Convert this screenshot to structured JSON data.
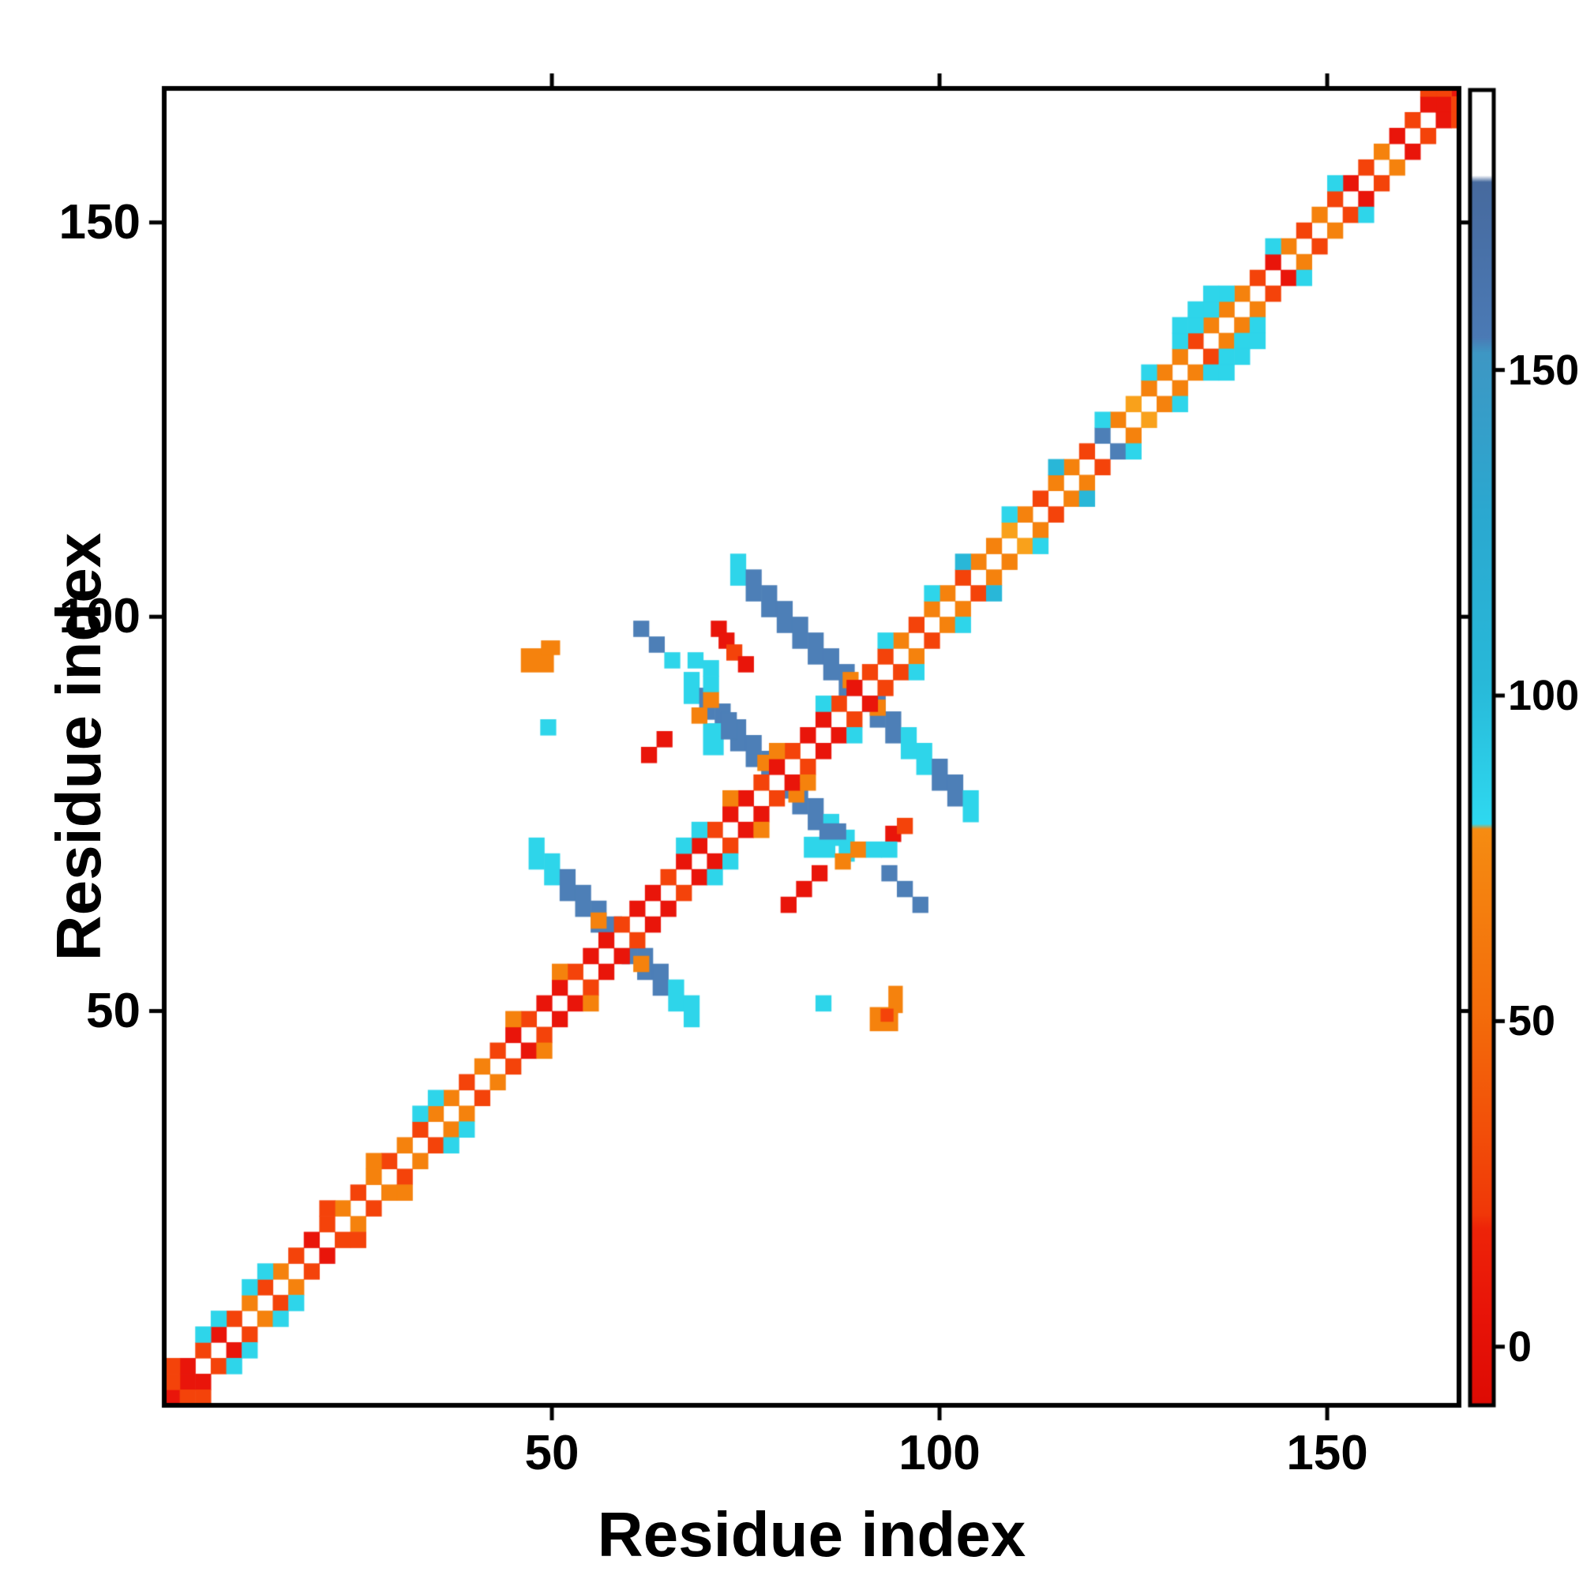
{
  "chart_data": {
    "type": "heatmap",
    "title": "",
    "xlabel": "Residue index",
    "ylabel": "Residue index",
    "axes": {
      "x_ticks": [
        50,
        100,
        150
      ],
      "y_ticks": [
        50,
        100,
        150
      ],
      "x_range": [
        0,
        167
      ],
      "y_range": [
        0,
        167
      ],
      "grid": "off"
    },
    "colorbar": {
      "ticks": [
        0,
        50,
        100,
        150
      ],
      "value_range": [
        -9,
        193
      ],
      "position": "right",
      "stops": [
        [
          0.0,
          "#de0b04"
        ],
        [
          0.07,
          "#e81408"
        ],
        [
          0.135,
          "#ee2408"
        ],
        [
          0.145,
          "#f03708"
        ],
        [
          0.2,
          "#f24c09"
        ],
        [
          0.3,
          "#f46d0b"
        ],
        [
          0.438,
          "#f68c12"
        ],
        [
          0.442,
          "#2fd9f0"
        ],
        [
          0.55,
          "#28b9d9"
        ],
        [
          0.68,
          "#2ba8d0"
        ],
        [
          0.8,
          "#3e97c4"
        ],
        [
          0.812,
          "#4b7ab5"
        ],
        [
          0.93,
          "#476a9e"
        ],
        [
          0.935,
          "#ffffff"
        ],
        [
          1.0,
          "#ffffff"
        ]
      ]
    },
    "palette": {
      "r": "#e9150a",
      "s": "#f4430a",
      "o": "#f5820d",
      "a": "#f9a11b",
      "c": "#2ed5ea",
      "t": "#29b7d8",
      "b": "#4d7fb7",
      "w": "#ffffff"
    },
    "cell_size_residues": 2,
    "diag_seq0": "rr................................................................................rr",
    "diag_seq1": "srsrsososrsosososoososrsrrsrrsrrsrrsrrsrsrrsrssosoosooaosoosboaooosooosrososrsorsrsr",
    "diag_seq2": "s.cc.cc...s..o..cc....o..o.......cc.o..o..c...c..c.t..c..t..c..c.cccc..c...c.....s.s",
    "diag_seq3": ".................................................................ccc................",
    "streaks": [
      {
        "sum": 117,
        "x0": 47,
        "x1": 67,
        "color": "b",
        "cyan": [
          47,
          49,
          65,
          67
        ]
      },
      {
        "sum": 158,
        "x0": 67,
        "x1": 87,
        "color": "b",
        "cyan": [
          67,
          85,
          87
        ]
      },
      {
        "sum": 179,
        "x0": 73,
        "x1": 103,
        "color": "b",
        "cyan": [
          73,
          89,
          95,
          97,
          103
        ]
      }
    ],
    "rects": [
      [
        46.0,
        93.0,
        4.2,
        3.0,
        "o"
      ],
      [
        48.6,
        95.2,
        2.4,
        1.8,
        "o"
      ],
      [
        91.0,
        47.5,
        3.6,
        3.0,
        "o"
      ],
      [
        93.4,
        49.8,
        1.8,
        3.4,
        "o"
      ],
      [
        92.4,
        48.7,
        1.6,
        1.6,
        "s"
      ],
      [
        82.5,
        69.5,
        4.0,
        2.6,
        "c"
      ],
      [
        84.5,
        71.8,
        3.4,
        2.0,
        "b"
      ],
      [
        69.5,
        82.5,
        2.6,
        4.0,
        "c"
      ],
      [
        71.8,
        84.5,
        2.0,
        3.4,
        "b"
      ]
    ],
    "scatter_cells": [
      [
        60.5,
        97.5,
        "b"
      ],
      [
        62.5,
        95.5,
        "b"
      ],
      [
        92.5,
        66.5,
        "b"
      ],
      [
        94.5,
        64.5,
        "b"
      ],
      [
        96.5,
        62.5,
        "b"
      ],
      [
        64.5,
        93.5,
        "c"
      ],
      [
        67.5,
        93.5,
        "c"
      ],
      [
        48.5,
        85.0,
        "c"
      ],
      [
        84.0,
        50.0,
        "c"
      ],
      [
        61.5,
        81.5,
        "r"
      ],
      [
        63.5,
        83.5,
        "r"
      ],
      [
        79.5,
        62.5,
        "r"
      ],
      [
        81.5,
        64.5,
        "r"
      ],
      [
        83.5,
        66.5,
        "r"
      ],
      [
        70.5,
        97.5,
        "r"
      ],
      [
        71.5,
        96.0,
        "r"
      ],
      [
        72.5,
        94.5,
        "s"
      ],
      [
        74.0,
        93.0,
        "r"
      ],
      [
        93.0,
        71.5,
        "r"
      ],
      [
        94.5,
        72.5,
        "s"
      ],
      [
        68.0,
        86.5,
        "o"
      ],
      [
        86.5,
        68.0,
        "o"
      ],
      [
        69.5,
        88.5,
        "o"
      ],
      [
        88.5,
        69.5,
        "o"
      ],
      [
        55.0,
        60.5,
        "o"
      ],
      [
        60.5,
        55.0,
        "o"
      ],
      [
        76.5,
        80.5,
        "o"
      ],
      [
        80.5,
        76.5,
        "o"
      ],
      [
        87.5,
        91.0,
        "o"
      ],
      [
        91.0,
        87.5,
        "o"
      ],
      [
        69.5,
        90.5,
        "c"
      ],
      [
        69.5,
        92.5,
        "c"
      ],
      [
        90.5,
        69.5,
        "c"
      ],
      [
        92.5,
        69.5,
        "c"
      ]
    ]
  }
}
